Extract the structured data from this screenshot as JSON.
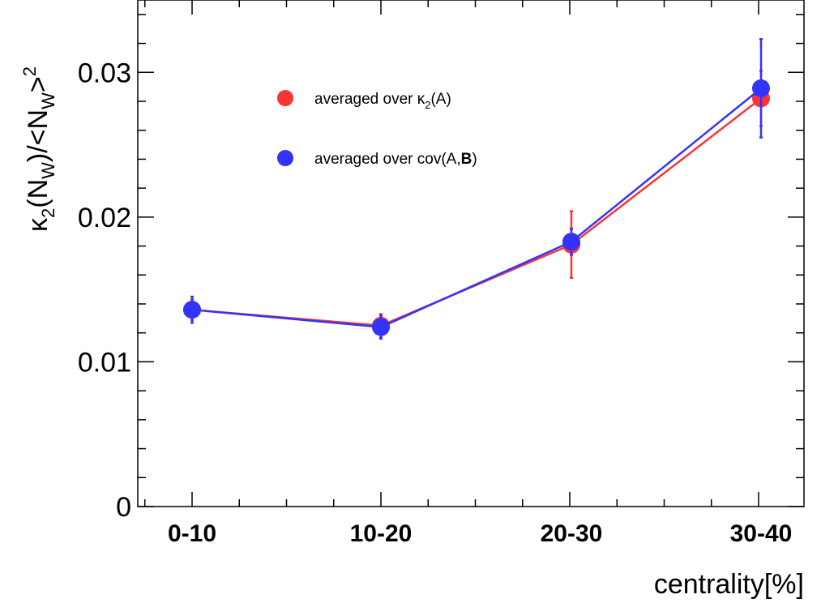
{
  "chart_data": {
    "type": "line",
    "categories": [
      "0-10",
      "10-20",
      "20-30",
      "30-40"
    ],
    "xlabel": "centrality[%]",
    "ylabel": {
      "prefix": "κ",
      "sub1": "2",
      "mid1": "(N",
      "sub2": "W",
      "mid2": ")/<N",
      "sub3": "W",
      "mid3": ">",
      "sup": "2"
    },
    "ylim": [
      0,
      0.035
    ],
    "yticks": [
      {
        "value": 0,
        "label": "0"
      },
      {
        "value": 0.01,
        "label": "0.01"
      },
      {
        "value": 0.02,
        "label": "0.02"
      },
      {
        "value": 0.03,
        "label": "0.03"
      }
    ],
    "grid": false,
    "legend_position": "top-left",
    "series": [
      {
        "name": "averaged over κ2(A)",
        "legend": {
          "pre": "averaged over κ",
          "sub": "2",
          "post": "(A)"
        },
        "color": "#ff3333",
        "values": [
          0.0136,
          0.0125,
          0.0181,
          0.0282
        ],
        "errors": [
          0.0007,
          0.0008,
          0.0023,
          0.0019
        ]
      },
      {
        "name": "averaged over cov(A,B)",
        "legend": {
          "pre": "averaged over cov(A,",
          "bold": "B",
          "post": ")"
        },
        "color": "#3333ff",
        "values": [
          0.0136,
          0.0124,
          0.0183,
          0.0289
        ],
        "errors": [
          0.0009,
          0.0008,
          0.0009,
          0.0034
        ]
      }
    ]
  }
}
